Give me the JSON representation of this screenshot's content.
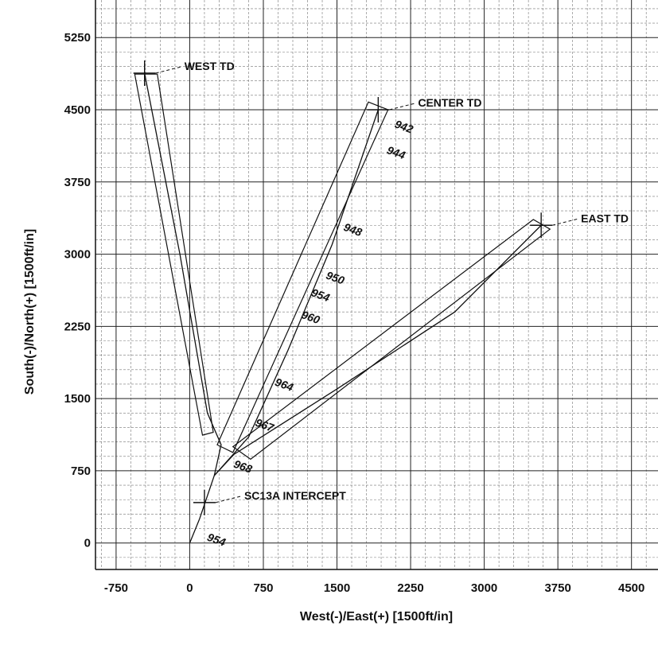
{
  "chart_data": {
    "type": "line",
    "title": "",
    "xlabel": "West(-)/East(+) [1500ft/in]",
    "ylabel": "South(-)/North(+) [1500ft/in]",
    "xlim": [
      -960,
      4770
    ],
    "ylim": [
      -275,
      5640
    ],
    "x_ticks": [
      -750,
      0,
      750,
      1500,
      2250,
      3000,
      3750,
      4500
    ],
    "y_ticks": [
      0,
      750,
      1500,
      2250,
      3000,
      3750,
      4500,
      5250
    ],
    "x_tick_labels": [
      "-750",
      "0",
      "750",
      "1500",
      "2250",
      "3000",
      "3750",
      "4500"
    ],
    "y_tick_labels": [
      "0",
      "750",
      "1500",
      "2250",
      "3000",
      "3750",
      "4500",
      "5250"
    ],
    "grid": true,
    "series": [
      {
        "points": [
          [
            0,
            0
          ],
          [
            100,
            250
          ],
          [
            150,
            400
          ],
          [
            250,
            700
          ]
        ]
      },
      {
        "points": [
          [
            250,
            700
          ],
          [
            320,
            1020
          ],
          [
            180,
            1350
          ],
          [
            -100,
            3000
          ],
          [
            -460,
            4880
          ]
        ]
      },
      {
        "points": [
          [
            250,
            700
          ],
          [
            600,
            1100
          ],
          [
            1000,
            2000
          ],
          [
            1450,
            3100
          ],
          [
            1920,
            4500
          ]
        ]
      },
      {
        "points": [
          [
            250,
            700
          ],
          [
            450,
            920
          ],
          [
            1500,
            1600
          ],
          [
            2700,
            2400
          ],
          [
            3580,
            3300
          ]
        ]
      }
    ],
    "corridors": [
      {
        "polygon": [
          [
            -560,
            4870
          ],
          [
            -330,
            4870
          ],
          [
            240,
            1150
          ],
          [
            130,
            1120
          ]
        ]
      },
      {
        "polygon": [
          [
            280,
            1020
          ],
          [
            440,
            940
          ],
          [
            2020,
            4500
          ],
          [
            1820,
            4580
          ]
        ]
      },
      {
        "polygon": [
          [
            440,
            1000
          ],
          [
            620,
            870
          ],
          [
            3670,
            3260
          ],
          [
            3500,
            3360
          ]
        ]
      }
    ],
    "td_markers": [
      {
        "label": "WEST TD",
        "x": -460,
        "y": 4880
      },
      {
        "label": "CENTER TD",
        "x": 1920,
        "y": 4500
      },
      {
        "label": "EAST TD",
        "x": 3580,
        "y": 3300
      },
      {
        "label": "SC13A INTERCEPT",
        "x": 150,
        "y": 420
      }
    ],
    "depth_annotations": [
      {
        "text": "942",
        "x": 2080,
        "y": 4320
      },
      {
        "text": "944",
        "x": 2000,
        "y": 4050
      },
      {
        "text": "948",
        "x": 1560,
        "y": 3250
      },
      {
        "text": "950",
        "x": 1380,
        "y": 2750
      },
      {
        "text": "954",
        "x": 1230,
        "y": 2570
      },
      {
        "text": "960",
        "x": 1130,
        "y": 2340
      },
      {
        "text": "964",
        "x": 860,
        "y": 1640
      },
      {
        "text": "967",
        "x": 660,
        "y": 1220
      },
      {
        "text": "968",
        "x": 440,
        "y": 790
      },
      {
        "text": "954",
        "x": 170,
        "y": 30
      }
    ]
  }
}
